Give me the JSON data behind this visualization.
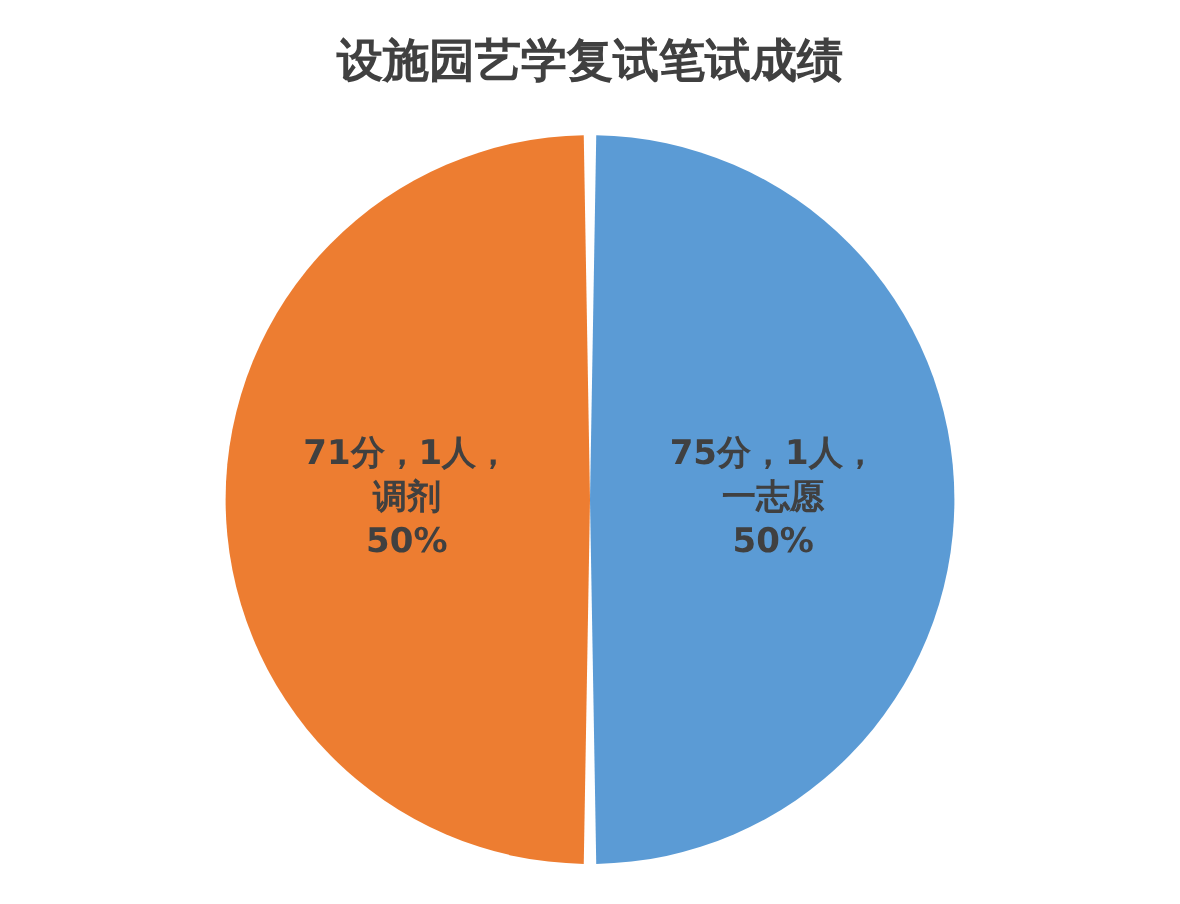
{
  "chart_data": {
    "type": "pie",
    "title": "设施园艺学复试笔试成绩",
    "categories": [
      "75分，1人，一志愿",
      "71分，1人，调剂"
    ],
    "values": [
      50,
      50
    ],
    "colors": [
      "#5b9bd5",
      "#ed7d31"
    ],
    "value_labels": [
      "50%",
      "50%"
    ],
    "legend": false
  }
}
